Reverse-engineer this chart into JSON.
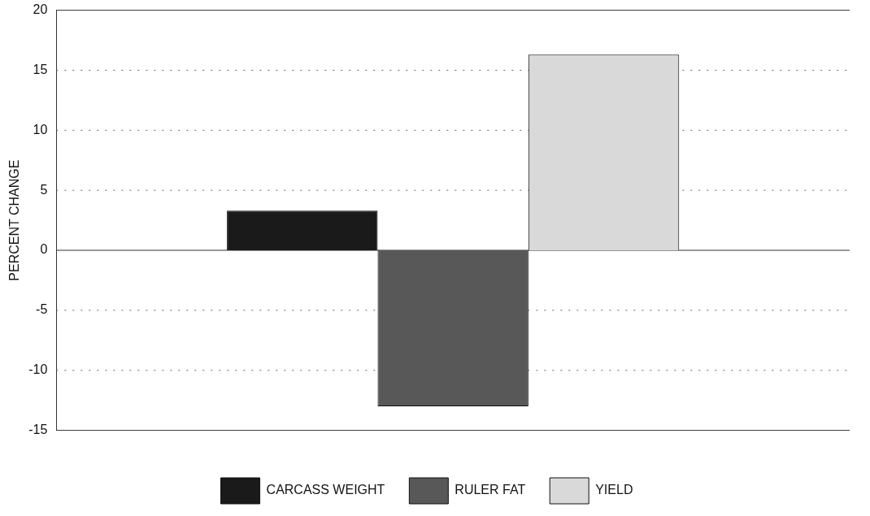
{
  "chart_data": {
    "type": "bar",
    "ylabel": "PERCENT CHANGE",
    "categories": [
      null
    ],
    "series": [
      {
        "name": "CARCASS WEIGHT",
        "color": "#1a1a1a",
        "values": [
          3.3
        ]
      },
      {
        "name": "RULER FAT",
        "color": "#585858",
        "values": [
          -13
        ]
      },
      {
        "name": "YIELD",
        "color": "#d9d9d9",
        "values": [
          16.3
        ]
      }
    ],
    "ylim": [
      -15,
      20
    ],
    "yticks": [
      -15,
      -10,
      -5,
      0,
      5,
      10,
      15,
      20
    ],
    "grid": "y",
    "legend": "bottom"
  }
}
